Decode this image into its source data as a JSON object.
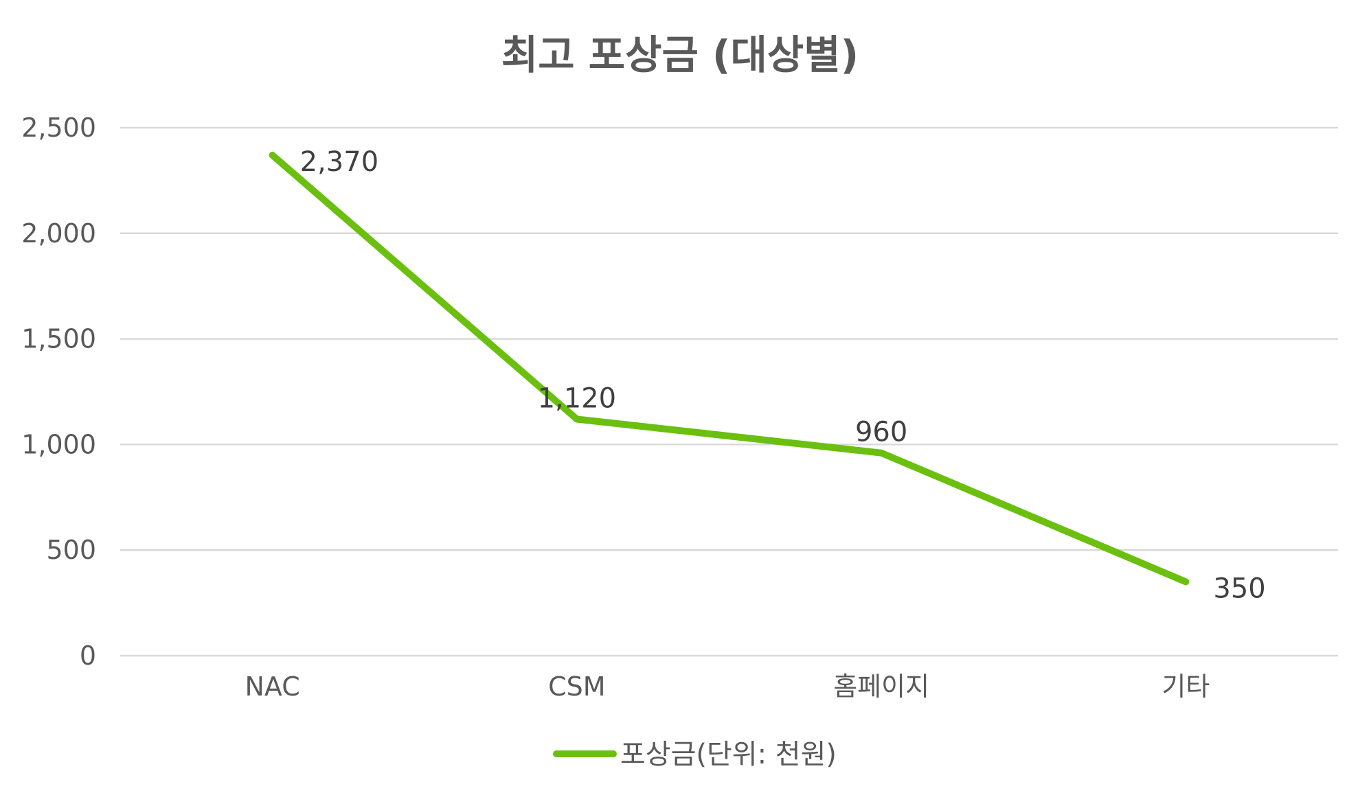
{
  "chart_data": {
    "type": "line",
    "title": "최고 포상금 (대상별)",
    "categories": [
      "NAC",
      "CSM",
      "홈페이지",
      "기타"
    ],
    "series": [
      {
        "name": "포상금(단위: 천원)",
        "values": [
          2370,
          1120,
          960,
          350
        ],
        "color": "#6abf0f"
      }
    ],
    "data_labels": [
      "2,370",
      "1,120",
      "960",
      "350"
    ],
    "y_ticks": [
      "0",
      "500",
      "1,000",
      "1,500",
      "2,000",
      "2,500"
    ],
    "y_tick_values": [
      0,
      500,
      1000,
      1500,
      2000,
      2500
    ],
    "ylim": [
      0,
      2500
    ],
    "grid": true,
    "legend_position": "bottom"
  }
}
